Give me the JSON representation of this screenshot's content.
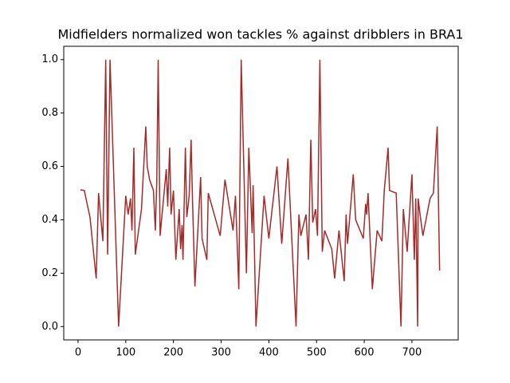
{
  "chart_data": {
    "type": "line",
    "title": "Midfielders normalized won tackles % against dribblers in BRA1",
    "x": [
      5,
      13,
      25,
      38,
      43,
      52,
      58,
      62,
      67,
      85,
      100,
      105,
      110,
      113,
      117,
      120,
      133,
      142,
      145,
      150,
      158,
      162,
      165,
      168,
      172,
      185,
      188,
      192,
      195,
      200,
      205,
      212,
      215,
      218,
      220,
      225,
      228,
      233,
      237,
      240,
      245,
      257,
      260,
      270,
      273,
      298,
      308,
      325,
      330,
      337,
      342,
      353,
      358,
      365,
      367,
      373,
      390,
      400,
      417,
      427,
      440,
      457,
      463,
      467,
      478,
      483,
      488,
      492,
      498,
      502,
      507,
      512,
      517,
      532,
      538,
      547,
      558,
      562,
      565,
      577,
      582,
      598,
      603,
      605,
      608,
      617,
      627,
      637,
      642,
      650,
      653,
      667,
      677,
      682,
      690,
      700,
      705,
      708,
      712,
      713,
      717,
      723,
      738,
      745,
      753,
      758
    ],
    "series": [
      {
        "color": "#a52a2a",
        "values": [
          0.512,
          0.51,
          0.41,
          0.18,
          0.5,
          0.32,
          1.0,
          0.27,
          1.0,
          0,
          0.49,
          0.42,
          0.48,
          0.36,
          0.67,
          0.27,
          0.44,
          0.75,
          0.6,
          0.55,
          0.51,
          0.36,
          0.54,
          1.0,
          0.34,
          0.59,
          0.45,
          0.67,
          0.42,
          0.51,
          0.25,
          0.44,
          0.29,
          0.38,
          0.25,
          0.67,
          0.41,
          0.49,
          0.7,
          0.47,
          0.15,
          0.56,
          0.33,
          0.25,
          0.5,
          0.34,
          0.55,
          0.36,
          0.49,
          0.14,
          1.0,
          0.2,
          0.67,
          0.35,
          0.53,
          0,
          0.49,
          0.33,
          0.6,
          0.31,
          0.63,
          0,
          0.42,
          0.34,
          0.42,
          0.25,
          0.7,
          0.39,
          0.44,
          0.34,
          1.0,
          0.28,
          0.36,
          0.29,
          0.18,
          0.36,
          0.17,
          0.42,
          0.31,
          0.57,
          0.4,
          0.33,
          0.46,
          0.42,
          0.5,
          0.14,
          0.36,
          0.32,
          0.51,
          0.67,
          0.51,
          0.5,
          0,
          0.44,
          0.28,
          0.57,
          0.25,
          0.48,
          0,
          0.48,
          0.42,
          0.34,
          0.48,
          0.5,
          0.75,
          0.21
        ]
      }
    ],
    "xlim": [
      -30,
      797
    ],
    "xticks": [
      0,
      100,
      200,
      300,
      400,
      500,
      600,
      700
    ],
    "ylim": [
      -0.05,
      1.05
    ],
    "yticks": [
      {
        "value": 0,
        "label": "0.0"
      },
      {
        "value": 0.2,
        "label": "0.2"
      },
      {
        "value": 0.4,
        "label": "0.4"
      },
      {
        "value": 0.6,
        "label": "0.6"
      },
      {
        "value": 0.8,
        "label": "0.8"
      },
      {
        "value": 1,
        "label": "1.0"
      }
    ]
  }
}
